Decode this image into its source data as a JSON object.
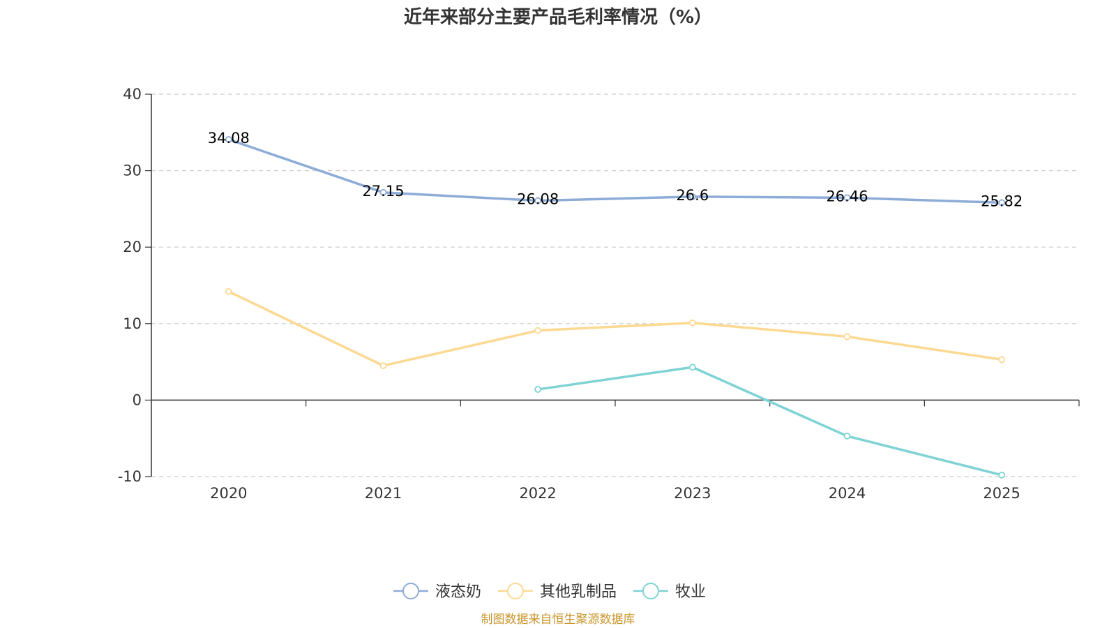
{
  "colors": {
    "series": [
      "#8eacd8",
      "#fcd992",
      "#7fd3d4"
    ],
    "axis": "#333333",
    "grid": "#cccccc",
    "source": "#c8942a"
  },
  "chart_data": {
    "type": "line",
    "title": "近年来部分主要产品毛利率情况（%）",
    "xlabel": "",
    "ylabel": "",
    "categories": [
      "2020",
      "2021",
      "2022",
      "2023",
      "2024",
      "2025"
    ],
    "ylim": [
      -10,
      40
    ],
    "yticks": [
      "-10",
      "0",
      "10",
      "20",
      "30",
      "40"
    ],
    "grid": "horizontal-dashed",
    "legend_position": "bottom-center",
    "series": [
      {
        "name": "液态奶",
        "values": [
          34.08,
          27.15,
          26.08,
          26.6,
          26.46,
          25.82
        ],
        "labels": [
          "34.08",
          "27.15",
          "26.08",
          "26.6",
          "26.46",
          "25.82"
        ]
      },
      {
        "name": "其他乳制品",
        "values": [
          14.2,
          4.5,
          9.1,
          10.1,
          8.3,
          5.3
        ],
        "labels": []
      },
      {
        "name": "牧业",
        "values": [
          null,
          null,
          1.4,
          4.3,
          -4.7,
          -9.8
        ],
        "labels": []
      }
    ]
  },
  "source": "制图数据来自恒生聚源数据库"
}
